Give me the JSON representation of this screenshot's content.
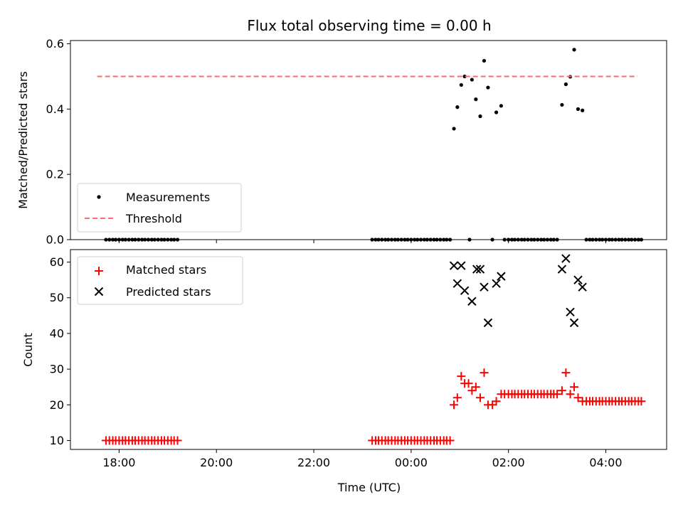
{
  "figure": {
    "title": "Flux total observing time = 0.00 h",
    "xlabel": "Time (UTC)"
  },
  "colors": {
    "measurement": "#000000",
    "threshold": "#ff6b6b",
    "matched": "#ff0000",
    "predicted": "#000000"
  },
  "chart_data": [
    {
      "type": "scatter",
      "ylabel": "Matched/Predicted stars",
      "xlim_hours": [
        17.0,
        29.25
      ],
      "ylim": [
        0,
        0.61
      ],
      "xticks": [
        {
          "value": 18,
          "label": "18:00"
        },
        {
          "value": 20,
          "label": "20:00"
        },
        {
          "value": 22,
          "label": "22:00"
        },
        {
          "value": 24,
          "label": "00:00"
        },
        {
          "value": 26,
          "label": "02:00"
        },
        {
          "value": 28,
          "label": "04:00"
        }
      ],
      "show_xtick_labels": false,
      "yticks": [
        {
          "value": 0.0,
          "label": "0.0"
        },
        {
          "value": 0.2,
          "label": "0.2"
        },
        {
          "value": 0.4,
          "label": "0.4"
        },
        {
          "value": 0.6,
          "label": "0.6"
        }
      ],
      "legend": {
        "position": "lower-left",
        "entries": [
          "Measurements",
          "Threshold"
        ]
      },
      "series": [
        {
          "name": "Measurements",
          "marker": "dot",
          "points": [
            [
              17.73,
              0
            ],
            [
              17.8,
              0
            ],
            [
              17.87,
              0
            ],
            [
              17.93,
              0
            ],
            [
              18.0,
              0
            ],
            [
              18.07,
              0
            ],
            [
              18.13,
              0
            ],
            [
              18.2,
              0
            ],
            [
              18.27,
              0
            ],
            [
              18.33,
              0
            ],
            [
              18.4,
              0
            ],
            [
              18.47,
              0
            ],
            [
              18.53,
              0
            ],
            [
              18.6,
              0
            ],
            [
              18.67,
              0
            ],
            [
              18.73,
              0
            ],
            [
              18.8,
              0
            ],
            [
              18.87,
              0
            ],
            [
              18.93,
              0
            ],
            [
              19.0,
              0
            ],
            [
              19.07,
              0
            ],
            [
              19.13,
              0
            ],
            [
              19.2,
              0
            ],
            [
              23.2,
              0
            ],
            [
              23.27,
              0
            ],
            [
              23.33,
              0
            ],
            [
              23.4,
              0
            ],
            [
              23.47,
              0
            ],
            [
              23.53,
              0
            ],
            [
              23.6,
              0
            ],
            [
              23.67,
              0
            ],
            [
              23.73,
              0
            ],
            [
              23.8,
              0
            ],
            [
              23.87,
              0
            ],
            [
              23.93,
              0
            ],
            [
              24.0,
              0
            ],
            [
              24.07,
              0
            ],
            [
              24.13,
              0
            ],
            [
              24.2,
              0
            ],
            [
              24.27,
              0
            ],
            [
              24.33,
              0
            ],
            [
              24.4,
              0
            ],
            [
              24.47,
              0
            ],
            [
              24.53,
              0
            ],
            [
              24.6,
              0
            ],
            [
              24.67,
              0
            ],
            [
              24.73,
              0
            ],
            [
              24.8,
              0
            ],
            [
              24.88,
              0.34
            ],
            [
              24.95,
              0.406
            ],
            [
              25.03,
              0.474
            ],
            [
              25.1,
              0.5
            ],
            [
              25.2,
              0
            ],
            [
              25.25,
              0.49
            ],
            [
              25.33,
              0.43
            ],
            [
              25.42,
              0.378
            ],
            [
              25.5,
              0.548
            ],
            [
              25.58,
              0.466
            ],
            [
              25.67,
              0
            ],
            [
              25.75,
              0.39
            ],
            [
              25.85,
              0.41
            ],
            [
              25.92,
              0
            ],
            [
              26.0,
              0
            ],
            [
              26.07,
              0
            ],
            [
              26.13,
              0
            ],
            [
              26.2,
              0
            ],
            [
              26.27,
              0
            ],
            [
              26.33,
              0
            ],
            [
              26.4,
              0
            ],
            [
              26.47,
              0
            ],
            [
              26.53,
              0
            ],
            [
              26.6,
              0
            ],
            [
              26.67,
              0
            ],
            [
              26.73,
              0
            ],
            [
              26.8,
              0
            ],
            [
              26.87,
              0
            ],
            [
              26.93,
              0
            ],
            [
              27.0,
              0
            ],
            [
              27.1,
              0.413
            ],
            [
              27.18,
              0.476
            ],
            [
              27.27,
              0.499
            ],
            [
              27.35,
              0.582
            ],
            [
              27.43,
              0.4
            ],
            [
              27.52,
              0.396
            ],
            [
              27.6,
              0
            ],
            [
              27.67,
              0
            ],
            [
              27.73,
              0
            ],
            [
              27.8,
              0
            ],
            [
              27.87,
              0
            ],
            [
              27.93,
              0
            ],
            [
              28.0,
              0
            ],
            [
              28.07,
              0
            ],
            [
              28.13,
              0
            ],
            [
              28.2,
              0
            ],
            [
              28.27,
              0
            ],
            [
              28.33,
              0
            ],
            [
              28.4,
              0
            ],
            [
              28.47,
              0
            ],
            [
              28.53,
              0
            ],
            [
              28.6,
              0
            ],
            [
              28.67,
              0
            ],
            [
              28.73,
              0
            ]
          ]
        },
        {
          "name": "Threshold",
          "marker": "dashed-line",
          "line": {
            "x": [
              17.55,
              28.65
            ],
            "y": 0.5
          }
        }
      ]
    },
    {
      "type": "scatter",
      "ylabel": "Count",
      "xlim_hours": [
        17.0,
        29.25
      ],
      "ylim": [
        7.5,
        63.5
      ],
      "xticks": [
        {
          "value": 18,
          "label": "18:00"
        },
        {
          "value": 20,
          "label": "20:00"
        },
        {
          "value": 22,
          "label": "22:00"
        },
        {
          "value": 24,
          "label": "00:00"
        },
        {
          "value": 26,
          "label": "02:00"
        },
        {
          "value": 28,
          "label": "04:00"
        }
      ],
      "show_xtick_labels": true,
      "yticks": [
        {
          "value": 10,
          "label": "10"
        },
        {
          "value": 20,
          "label": "20"
        },
        {
          "value": 30,
          "label": "30"
        },
        {
          "value": 40,
          "label": "40"
        },
        {
          "value": 50,
          "label": "50"
        },
        {
          "value": 60,
          "label": "60"
        }
      ],
      "legend": {
        "position": "upper-left",
        "entries": [
          "Matched stars",
          "Predicted stars"
        ]
      },
      "series": [
        {
          "name": "Matched stars",
          "marker": "plus",
          "points": [
            [
              17.73,
              10
            ],
            [
              17.8,
              10
            ],
            [
              17.87,
              10
            ],
            [
              17.93,
              10
            ],
            [
              18.0,
              10
            ],
            [
              18.07,
              10
            ],
            [
              18.13,
              10
            ],
            [
              18.2,
              10
            ],
            [
              18.27,
              10
            ],
            [
              18.33,
              10
            ],
            [
              18.4,
              10
            ],
            [
              18.47,
              10
            ],
            [
              18.53,
              10
            ],
            [
              18.6,
              10
            ],
            [
              18.67,
              10
            ],
            [
              18.73,
              10
            ],
            [
              18.8,
              10
            ],
            [
              18.87,
              10
            ],
            [
              18.93,
              10
            ],
            [
              19.0,
              10
            ],
            [
              19.07,
              10
            ],
            [
              19.13,
              10
            ],
            [
              19.2,
              10
            ],
            [
              23.2,
              10
            ],
            [
              23.27,
              10
            ],
            [
              23.33,
              10
            ],
            [
              23.4,
              10
            ],
            [
              23.47,
              10
            ],
            [
              23.53,
              10
            ],
            [
              23.6,
              10
            ],
            [
              23.67,
              10
            ],
            [
              23.73,
              10
            ],
            [
              23.8,
              10
            ],
            [
              23.87,
              10
            ],
            [
              23.93,
              10
            ],
            [
              24.0,
              10
            ],
            [
              24.07,
              10
            ],
            [
              24.13,
              10
            ],
            [
              24.2,
              10
            ],
            [
              24.27,
              10
            ],
            [
              24.33,
              10
            ],
            [
              24.4,
              10
            ],
            [
              24.47,
              10
            ],
            [
              24.53,
              10
            ],
            [
              24.6,
              10
            ],
            [
              24.67,
              10
            ],
            [
              24.73,
              10
            ],
            [
              24.8,
              10
            ],
            [
              24.88,
              20
            ],
            [
              24.95,
              22
            ],
            [
              25.03,
              28
            ],
            [
              25.1,
              26
            ],
            [
              25.18,
              26
            ],
            [
              25.25,
              24
            ],
            [
              25.33,
              25
            ],
            [
              25.42,
              22
            ],
            [
              25.5,
              29
            ],
            [
              25.58,
              20
            ],
            [
              25.67,
              20
            ],
            [
              25.75,
              21
            ],
            [
              25.85,
              23
            ],
            [
              25.92,
              23
            ],
            [
              26.0,
              23
            ],
            [
              26.07,
              23
            ],
            [
              26.13,
              23
            ],
            [
              26.2,
              23
            ],
            [
              26.27,
              23
            ],
            [
              26.33,
              23
            ],
            [
              26.4,
              23
            ],
            [
              26.47,
              23
            ],
            [
              26.53,
              23
            ],
            [
              26.6,
              23
            ],
            [
              26.67,
              23
            ],
            [
              26.73,
              23
            ],
            [
              26.8,
              23
            ],
            [
              26.87,
              23
            ],
            [
              26.93,
              23
            ],
            [
              27.0,
              23
            ],
            [
              27.1,
              24
            ],
            [
              27.18,
              29
            ],
            [
              27.27,
              23
            ],
            [
              27.35,
              25
            ],
            [
              27.43,
              22
            ],
            [
              27.52,
              21
            ],
            [
              27.6,
              21
            ],
            [
              27.67,
              21
            ],
            [
              27.73,
              21
            ],
            [
              27.8,
              21
            ],
            [
              27.87,
              21
            ],
            [
              27.93,
              21
            ],
            [
              28.0,
              21
            ],
            [
              28.07,
              21
            ],
            [
              28.13,
              21
            ],
            [
              28.2,
              21
            ],
            [
              28.27,
              21
            ],
            [
              28.33,
              21
            ],
            [
              28.4,
              21
            ],
            [
              28.47,
              21
            ],
            [
              28.53,
              21
            ],
            [
              28.6,
              21
            ],
            [
              28.67,
              21
            ],
            [
              28.73,
              21
            ]
          ]
        },
        {
          "name": "Predicted stars",
          "marker": "x",
          "points": [
            [
              24.88,
              59
            ],
            [
              24.95,
              54
            ],
            [
              25.03,
              59
            ],
            [
              25.1,
              52
            ],
            [
              25.25,
              49
            ],
            [
              25.35,
              58
            ],
            [
              25.42,
              58
            ],
            [
              25.5,
              53
            ],
            [
              25.58,
              43
            ],
            [
              25.75,
              54
            ],
            [
              25.85,
              56
            ],
            [
              27.1,
              58
            ],
            [
              27.18,
              61
            ],
            [
              27.27,
              46
            ],
            [
              27.35,
              43
            ],
            [
              27.43,
              55
            ],
            [
              27.52,
              53
            ]
          ]
        }
      ]
    }
  ]
}
